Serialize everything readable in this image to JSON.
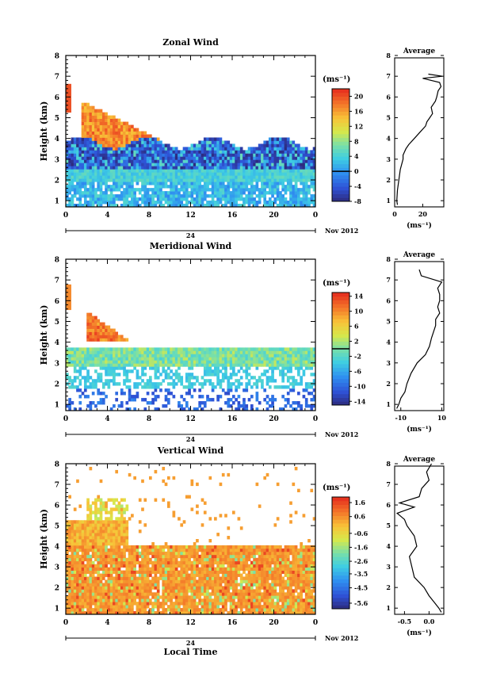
{
  "figure": {
    "xlabel": "Local Time",
    "date_label": "Nov 2012",
    "day_label": "24",
    "profile_title": "Average"
  },
  "chart_data": [
    {
      "type": "heatmap",
      "title": "Zonal Wind",
      "ylabel": "Height (km)",
      "xlabel": "Local Time",
      "x_ticks": [
        "0",
        "4",
        "8",
        "12",
        "16",
        "20",
        "0"
      ],
      "y_ticks": [
        "1",
        "2",
        "3",
        "4",
        "5",
        "6",
        "7",
        "8"
      ],
      "xlim_hours": [
        0,
        24
      ],
      "ylim": [
        0.7,
        8
      ],
      "colorbar": {
        "unit": "(ms⁻¹)",
        "range": [
          -8,
          22
        ],
        "ticks": [
          "-8",
          "-4",
          "0",
          "4",
          "8",
          "12",
          "16",
          "20"
        ],
        "zero_line": 0
      },
      "profile": {
        "title": "Average",
        "xlabel": "(ms⁻¹)",
        "x_ticks": [
          "0",
          "20"
        ],
        "xlim": [
          0,
          35
        ],
        "height": [
          0.8,
          1.0,
          1.5,
          2.0,
          2.5,
          3.0,
          3.2,
          3.5,
          3.7,
          4.0,
          4.3,
          4.6,
          4.8,
          5.0,
          5.2,
          5.5,
          5.8,
          6.0,
          6.3,
          6.5,
          6.7,
          6.9,
          7.0,
          7.1
        ],
        "value": [
          2,
          1.5,
          2,
          3,
          4,
          6,
          6,
          8,
          10,
          14,
          18,
          22,
          23,
          25,
          27,
          26,
          29,
          30,
          31,
          33,
          32,
          20,
          34,
          24
        ]
      }
    },
    {
      "type": "heatmap",
      "title": "Meridional Wind",
      "ylabel": "Height (km)",
      "xlabel": "Local Time",
      "x_ticks": [
        "0",
        "4",
        "8",
        "12",
        "16",
        "20",
        "0"
      ],
      "y_ticks": [
        "1",
        "2",
        "3",
        "4",
        "5",
        "6",
        "7",
        "8"
      ],
      "xlim_hours": [
        0,
        24
      ],
      "ylim": [
        0.7,
        8
      ],
      "colorbar": {
        "unit": "(ms⁻¹)",
        "range": [
          -15,
          15
        ],
        "ticks": [
          "-14",
          "-10",
          "-6",
          "-2",
          "2",
          "6",
          "10",
          "14"
        ],
        "zero_line": 0
      },
      "profile": {
        "title": "Average",
        "xlabel": "(ms⁻¹)",
        "x_ticks": [
          "-10",
          "10"
        ],
        "xlim": [
          -13,
          11
        ],
        "height": [
          0.8,
          1.0,
          1.3,
          1.6,
          2.0,
          2.5,
          3.0,
          3.4,
          3.8,
          4.2,
          4.5,
          4.8,
          5.1,
          5.4,
          5.7,
          6.0,
          6.3,
          6.6,
          6.9,
          7.2,
          7.5
        ],
        "value": [
          -12,
          -11,
          -10,
          -8,
          -7,
          -5,
          -2,
          2,
          4,
          5,
          6,
          7,
          7,
          9,
          8,
          9,
          9,
          8,
          10,
          0,
          -1
        ]
      }
    },
    {
      "type": "heatmap",
      "title": "Vertical Wind",
      "ylabel": "Height (km)",
      "xlabel": "Local Time",
      "x_ticks": [
        "0",
        "4",
        "8",
        "12",
        "16",
        "20",
        "0"
      ],
      "y_ticks": [
        "1",
        "2",
        "3",
        "4",
        "5",
        "6",
        "7",
        "8"
      ],
      "xlim_hours": [
        0,
        24
      ],
      "ylim": [
        0.7,
        8
      ],
      "colorbar": {
        "unit": "(ms⁻¹)",
        "range": [
          -6,
          2
        ],
        "ticks": [
          "-5.6",
          "-4.5",
          "-3.5",
          "-2.6",
          "-1.6",
          "-0.6",
          "0.6",
          "1.6"
        ],
        "zero_line": null
      },
      "profile": {
        "title": "Average",
        "xlabel": "(ms⁻¹)",
        "x_ticks": [
          "-0.5",
          "0.0"
        ],
        "xlim": [
          -0.7,
          0.3
        ],
        "height": [
          0.8,
          1.0,
          1.3,
          1.6,
          2.0,
          2.5,
          3.0,
          3.5,
          4.0,
          4.5,
          5.0,
          5.3,
          5.6,
          5.9,
          6.1,
          6.4,
          6.8,
          7.2,
          7.6,
          8.0
        ],
        "value": [
          0.25,
          0.2,
          0.1,
          0.0,
          -0.1,
          -0.3,
          -0.35,
          -0.4,
          -0.25,
          -0.3,
          -0.45,
          -0.5,
          -0.65,
          -0.3,
          -0.6,
          -0.2,
          -0.15,
          0.0,
          -0.05,
          0.05
        ]
      }
    }
  ]
}
